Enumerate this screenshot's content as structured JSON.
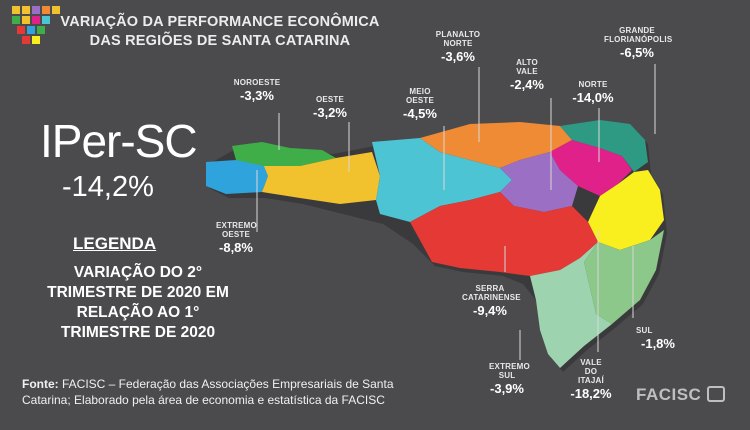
{
  "title": {
    "line1": "VARIAÇÃO DA PERFORMANCE ECONÔMICA",
    "line2": "DAS REGIÕES DE SANTA CATARINA"
  },
  "index": {
    "name": "IPer-SC",
    "value": "-14,2%"
  },
  "legend": {
    "heading": "LEGENDA",
    "lines": [
      "VARIAÇÃO DO 2°",
      "TRIMESTRE DE 2020 EM",
      "RELAÇÃO AO 1°",
      "TRIMESTRE DE 2020"
    ]
  },
  "source": {
    "label": "Fonte:",
    "line1": " FACISC – Federação das Associações Empresariais de Santa",
    "line2": "Catarina; Elaborado pela área de economia e estatística da FACISC"
  },
  "brand": "FACISC",
  "regions": [
    {
      "id": "noroeste",
      "name": "NOROESTE",
      "value": "-3,3%",
      "color": "#3fae49"
    },
    {
      "id": "oeste",
      "name": "OESTE",
      "value": "-3,2%",
      "color": "#f2c12e"
    },
    {
      "id": "meio-oeste",
      "name": "MEIO OESTE",
      "value": "-4,5%",
      "color": "#4cc4d4"
    },
    {
      "id": "planalto-norte",
      "name": "PLANALTO NORTE",
      "value": "-3,6%",
      "color": "#ef8a35"
    },
    {
      "id": "alto-vale",
      "name": "ALTO VALE",
      "value": "-2,4%",
      "color": "#9b6fc3"
    },
    {
      "id": "norte",
      "name": "NORTE",
      "value": "-14,0%",
      "color": "#e0218a"
    },
    {
      "id": "grande-florianopolis",
      "name": "GRANDE FLORIANÓPOLIS",
      "value": "-6,5%",
      "color": "#2f9a84"
    },
    {
      "id": "extremo-oeste",
      "name": "EXTREMO OESTE",
      "value": "-8,8%",
      "color": "#2fa4dc"
    },
    {
      "id": "serra-catarinense",
      "name": "SERRA CATARINENSE",
      "value": "-9,4%",
      "color": "#e53935"
    },
    {
      "id": "vale-do-itajai",
      "name": "VALE DO ITAJAÍ",
      "value": "-18,2%",
      "color": "#f9ee1e"
    },
    {
      "id": "sul",
      "name": "SUL",
      "value": "-1,8%",
      "color": "#8bc88a"
    },
    {
      "id": "extremo-sul",
      "name": "EXTREMO SUL",
      "value": "-3,9%",
      "color": "#9ed3b0"
    }
  ]
}
